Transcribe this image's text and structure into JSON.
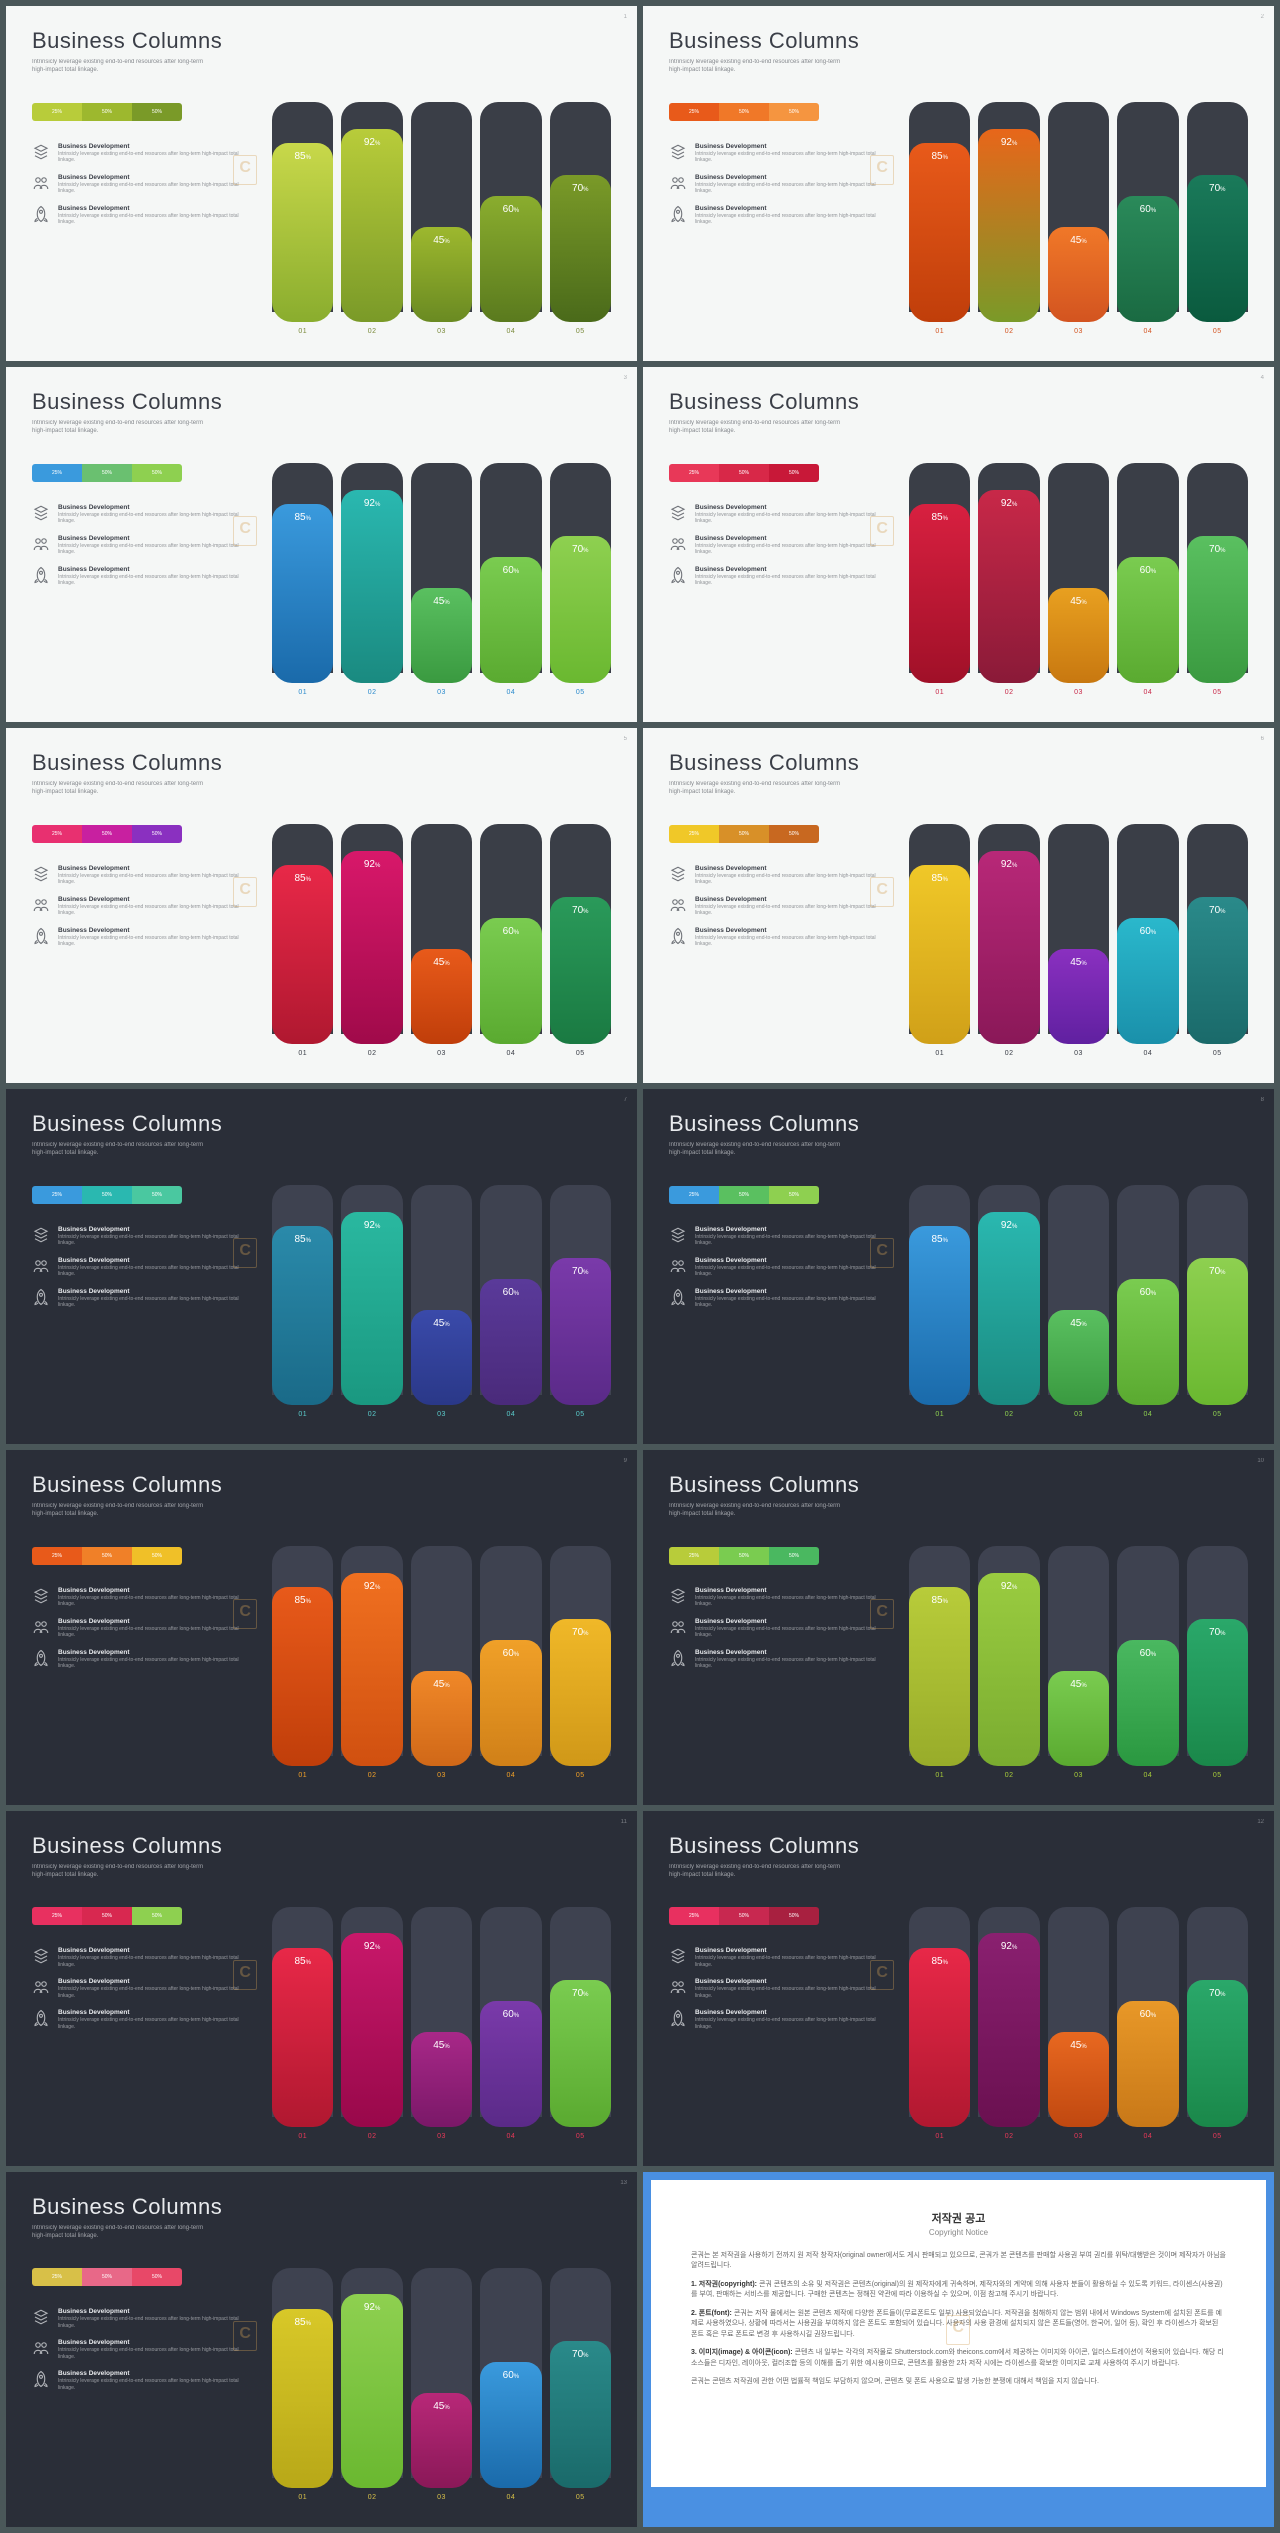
{
  "common": {
    "title": "Business Columns",
    "subtitle": "Intrinsicly leverage existing end-to-end resources after long-term high-impact total linkage.",
    "legend_labels": [
      "25%",
      "50%",
      "50%"
    ],
    "features": [
      {
        "title": "Business Development",
        "desc": "Intrinsicly leverage existing end-to-end resources after long-term high-impact total linkage."
      },
      {
        "title": "Business Development",
        "desc": "Intrinsicly leverage existing end-to-end resources after long-term high-impact total linkage."
      },
      {
        "title": "Business Development",
        "desc": "Intrinsicly leverage existing end-to-end resources after long-term high-impact total linkage."
      }
    ],
    "columns": {
      "labels": [
        "01",
        "02",
        "03",
        "04",
        "05"
      ],
      "values": [
        85,
        92,
        45,
        60,
        70
      ]
    },
    "track_color_light": "#3a3e47",
    "track_color_dark": "#4a4e58"
  },
  "slides": [
    {
      "bg": "#f5f7f6",
      "text": "#3a3e47",
      "label_color": "#7a8a3a",
      "track": "#3a3e47",
      "legend": [
        "#b8cc3a",
        "#9db82e",
        "#7a9a28"
      ],
      "bars": [
        [
          "#c8d84a",
          "#8aad2e"
        ],
        [
          "#b8cc3a",
          "#7a9a28"
        ],
        [
          "#9db82e",
          "#6a8a22"
        ],
        [
          "#8aad2e",
          "#5a7a1e"
        ],
        [
          "#7a9a28",
          "#4a6a1a"
        ]
      ]
    },
    {
      "bg": "#f5f7f6",
      "text": "#3a3e47",
      "label_color": "#d35420",
      "track": "#3a3e47",
      "legend": [
        "#e85a1a",
        "#f07828",
        "#f59540"
      ],
      "bars": [
        [
          "#e85a1a",
          "#c03e0a"
        ],
        [
          "#e8661a",
          "#7a9a28"
        ],
        [
          "#f07828",
          "#d35420"
        ],
        [
          "#2a8a5a",
          "#1a6a42"
        ],
        [
          "#1a7a5a",
          "#0a5a3e"
        ]
      ]
    },
    {
      "bg": "#f5f7f6",
      "text": "#3a3e47",
      "label_color": "#2a8acc",
      "track": "#3a3e47",
      "legend": [
        "#3a9add",
        "#6ac070",
        "#8ed050"
      ],
      "bars": [
        [
          "#3a9add",
          "#1a6aaa"
        ],
        [
          "#2ab8b0",
          "#1a8a80"
        ],
        [
          "#5ac060",
          "#3a9a40"
        ],
        [
          "#7acc50",
          "#5aaa30"
        ],
        [
          "#8ed050",
          "#6ab830"
        ]
      ]
    },
    {
      "bg": "#f5f7f6",
      "text": "#3a3e47",
      "label_color": "#c82848",
      "track": "#3a3e47",
      "legend": [
        "#e83858",
        "#d82848",
        "#c81838"
      ],
      "bars": [
        [
          "#d82040",
          "#a01028"
        ],
        [
          "#c82848",
          "#8a1a38"
        ],
        [
          "#e8a020",
          "#c87810"
        ],
        [
          "#7acc50",
          "#5aaa30"
        ],
        [
          "#5ac060",
          "#3a9a40"
        ]
      ]
    },
    {
      "bg": "#f5f7f6",
      "text": "#3a3e47",
      "label_color": "#3a3e47",
      "track": "#3a3e47",
      "legend": [
        "#e83070",
        "#c820a0",
        "#8a30c0"
      ],
      "bars": [
        [
          "#e82848",
          "#b01830"
        ],
        [
          "#d8186a",
          "#a00a4a"
        ],
        [
          "#e85a1a",
          "#c03e0a"
        ],
        [
          "#7acc50",
          "#5aaa30"
        ],
        [
          "#2a9a5a",
          "#1a7a42"
        ]
      ]
    },
    {
      "bg": "#f5f7f6",
      "text": "#3a3e47",
      "label_color": "#3a3e47",
      "track": "#3a3e47",
      "legend": [
        "#f0c828",
        "#d89028",
        "#c86820"
      ],
      "bars": [
        [
          "#f0c828",
          "#d0a018"
        ],
        [
          "#b82878",
          "#8a1858"
        ],
        [
          "#8a30c0",
          "#6020a0"
        ],
        [
          "#2ab8cc",
          "#1a90aa"
        ],
        [
          "#2a8a8a",
          "#1a6a6a"
        ]
      ]
    },
    {
      "bg": "#2a2e38",
      "text": "#e8eaed",
      "label_color": "#5acccc",
      "track": "#3e4250",
      "legend": [
        "#3a9add",
        "#2ab8b0",
        "#4ac8a0"
      ],
      "bars": [
        [
          "#2a8aaa",
          "#1a6a88"
        ],
        [
          "#2ab8a0",
          "#1a9880"
        ],
        [
          "#3a4aaa",
          "#2a3888"
        ],
        [
          "#5a3a9a",
          "#4a2a7a"
        ],
        [
          "#7a3aaa",
          "#5a2a88"
        ]
      ]
    },
    {
      "bg": "#2a2e38",
      "text": "#e8eaed",
      "label_color": "#8ed050",
      "track": "#3e4250",
      "legend": [
        "#3a9add",
        "#5ac060",
        "#8ed050"
      ],
      "bars": [
        [
          "#3a9add",
          "#1a6aaa"
        ],
        [
          "#2ab8b0",
          "#1a8a80"
        ],
        [
          "#5ac060",
          "#3a9a40"
        ],
        [
          "#7acc50",
          "#5aaa30"
        ],
        [
          "#8ed050",
          "#6ab830"
        ]
      ]
    },
    {
      "bg": "#2a2e38",
      "text": "#e8eaed",
      "label_color": "#f0a028",
      "track": "#3e4250",
      "legend": [
        "#e85a1a",
        "#f08028",
        "#f0c028"
      ],
      "bars": [
        [
          "#e85a1a",
          "#c03e0a"
        ],
        [
          "#f07020",
          "#d05010"
        ],
        [
          "#f08828",
          "#d06818"
        ],
        [
          "#f0a028",
          "#d08018"
        ],
        [
          "#f0b828",
          "#d09818"
        ]
      ]
    },
    {
      "bg": "#2a2e38",
      "text": "#e8eaed",
      "label_color": "#a8cc3a",
      "track": "#3e4250",
      "legend": [
        "#b8cc3a",
        "#7acc50",
        "#4ab860"
      ],
      "bars": [
        [
          "#b8cc3a",
          "#98ac2a"
        ],
        [
          "#9acc40",
          "#7aac30"
        ],
        [
          "#7acc50",
          "#5aaa30"
        ],
        [
          "#4ab860",
          "#2a9840"
        ],
        [
          "#2aa86a",
          "#1a884a"
        ]
      ]
    },
    {
      "bg": "#2a2e38",
      "text": "#e8eaed",
      "label_color": "#e83858",
      "track": "#3e4250",
      "legend": [
        "#e83060",
        "#d82850",
        "#8ed050"
      ],
      "bars": [
        [
          "#e82848",
          "#b01830"
        ],
        [
          "#c8186a",
          "#98084a"
        ],
        [
          "#a82888",
          "#7a1868"
        ],
        [
          "#7a3aaa",
          "#5a2a88"
        ],
        [
          "#7acc50",
          "#5aaa30"
        ]
      ]
    },
    {
      "bg": "#2a2e38",
      "text": "#e8eaed",
      "label_color": "#e83858",
      "track": "#3e4250",
      "legend": [
        "#e83060",
        "#c82850",
        "#a82040"
      ],
      "bars": [
        [
          "#e82848",
          "#b01830"
        ],
        [
          "#8a2070",
          "#6a1050"
        ],
        [
          "#e86820",
          "#c04810"
        ],
        [
          "#e89828",
          "#c87818"
        ],
        [
          "#2aa86a",
          "#1a884a"
        ]
      ]
    },
    {
      "bg": "#2a2e38",
      "text": "#e8eaed",
      "label_color": "#d8c048",
      "track": "#3e4250",
      "legend": [
        "#d8c048",
        "#e86888",
        "#e84868"
      ],
      "bars": [
        [
          "#d8c828",
          "#b8a818"
        ],
        [
          "#8ed050",
          "#6ab830"
        ],
        [
          "#b82878",
          "#8a1858"
        ],
        [
          "#3a9add",
          "#1a6aaa"
        ],
        [
          "#2a8a8a",
          "#1a6a6a"
        ]
      ]
    }
  ],
  "copyright": {
    "title": "저작권 공고",
    "subtitle": "Copyright Notice",
    "p1": "콘궈는 본 저작권을 사용하기 전까지 원 저작 창작자(original owner에서도 게시 판매되고 있으므로, 콘궈가 본 콘텐츠를 판매할 사용권 부여 권리를 위탁/대행받은 것이며 제작자가 아님을 알려드립니다.",
    "l1_title": "1. 저작권(copyright):",
    "l1_body": "콘궈 콘텐츠의 소유 및 저작권은 콘텐츠(original)의 원 제작자에게 귀속하며, 제작자와의 계약에 의해 사용자 분들이 활용하실 수 있도록 키워드, 라이센스(사용권)를 부여, 판매하는 서비스를 제공합니다. 구매한 콘텐츠는 정해진 약관에 따라 이용하실 수 있으며, 이점 참고해 주시기 바랍니다.",
    "l2_title": "2. 폰트(font):",
    "l2_body": "콘궈는 저작 물에서는 원본 콘텐츠 제작에 다양한 폰트들이(무료폰트도 일부) 사용되었습니다. 저작권을 침해하지 않는 범위 내에서 Windows System에 설치된 폰트를 예제로 사용하였으나, 상황에 따라서는 사용권을 부여하지 않은 폰트도 포함되어 있습니다. 사용자의 사용 환경에 설치되지 않은 폰트들(영어, 한국어, 일어 등), 확인 후 라이센스가 확보된 폰트 혹은 무료 폰트로 변경 후 사용하시길 권장드립니다.",
    "l3_title": "3. 이미지(image) & 아이콘(icon):",
    "l3_body": "콘텐츠 내 일부는 각각의 저작물로 Shutterstock.com와 theicons.com에서 제공하는 이미지와 아이콘, 일러스트레이션이 적용되어 있습니다. 해당 리소스들은 디자인, 레이아웃, 컬러조합 등의 이해를 돕기 위한 예시용이므로, 콘텐츠를 활용한 2차 저작 시에는 라이센스를 확보한 이미지로 교체 사용하여 주시기 바랍니다.",
    "footer": "콘궈는 콘텐츠 저작권에 관한 어떤 법률적 책임도 부담하지 않으며, 콘텐츠 및 폰트 사용으로 발생 가능한 분쟁에 대해서 책임을 지지 않습니다."
  }
}
